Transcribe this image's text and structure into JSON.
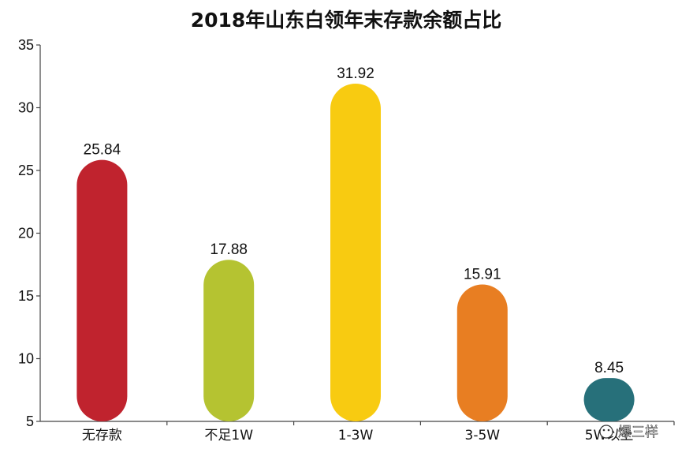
{
  "chart_data": {
    "type": "bar",
    "title": "2018年山东白领年末存款余额占比",
    "xlabel": "",
    "ylabel": "",
    "categories": [
      "无存款",
      "不足1W",
      "1-3W",
      "3-5W",
      "5W以上"
    ],
    "values": [
      25.84,
      17.88,
      31.92,
      15.91,
      8.45
    ],
    "data_labels": [
      "25.84",
      "17.88",
      "31.92",
      "15.91",
      "8.45"
    ],
    "colors": [
      "#c0232e",
      "#b5c331",
      "#f8cb11",
      "#e87e22",
      "#27707a"
    ],
    "ylim": [
      5,
      35
    ],
    "yticks": [
      5,
      10,
      15,
      20,
      25,
      30,
      35
    ],
    "grid": false,
    "legend": "none",
    "bar_shape": "rounded"
  },
  "watermark": "爆三样"
}
